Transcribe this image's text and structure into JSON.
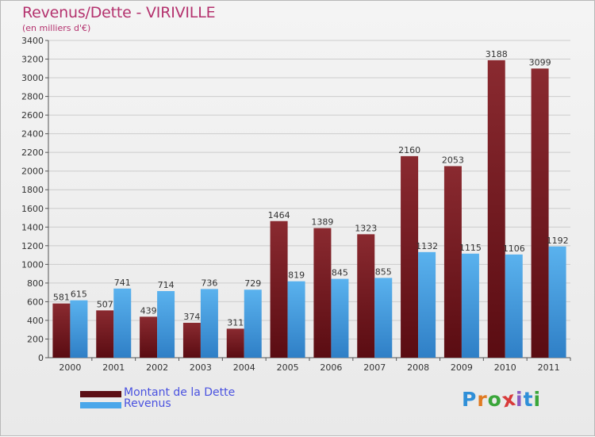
{
  "header": {
    "title": "Revenus/Dette - VIRIVILLE",
    "subtitle": "(en milliers d'€)"
  },
  "legend": {
    "debt_label": "Montant de la Dette",
    "revenue_label": "Revenus"
  },
  "logo": {
    "text": "Proxiti",
    "letters": [
      "P",
      "r",
      "o",
      "x",
      "i",
      "t",
      "i"
    ],
    "letter_colors": [
      "#2f8fd8",
      "#e07a22",
      "#3aa63a",
      "#d83a3a",
      "#8a5bc2",
      "#2f8fd8",
      "#3aa63a"
    ]
  },
  "colors": {
    "debt": "#7a1c22",
    "debt_dark": "#5c0e14",
    "revenue": "#4aa7ea",
    "revenue_dark": "#2a7fc8",
    "grid": "#cccccc",
    "text": "#333333"
  },
  "chart_data": {
    "type": "bar",
    "title": "Revenus/Dette - VIRIVILLE",
    "subtitle": "(en milliers d'€)",
    "xlabel": "",
    "ylabel": "",
    "categories": [
      "2000",
      "2001",
      "2002",
      "2003",
      "2004",
      "2005",
      "2006",
      "2007",
      "2008",
      "2009",
      "2010",
      "2011"
    ],
    "series": [
      {
        "name": "Montant de la Dette",
        "values": [
          581,
          507,
          439,
          374,
          311,
          1464,
          1389,
          1323,
          2160,
          2053,
          3188,
          3099
        ]
      },
      {
        "name": "Revenus",
        "values": [
          615,
          741,
          714,
          736,
          729,
          819,
          845,
          855,
          1132,
          1115,
          1106,
          1192
        ]
      }
    ],
    "ylim": [
      0,
      3400
    ],
    "yticks": [
      "0",
      "200",
      "400",
      "600",
      "800",
      "1000",
      "1200",
      "1400",
      "1600",
      "1800",
      "2000",
      "2200",
      "2400",
      "2600",
      "2800",
      "3000",
      "3200",
      "3400"
    ],
    "grid": true,
    "legend_position": "bottom-left"
  }
}
